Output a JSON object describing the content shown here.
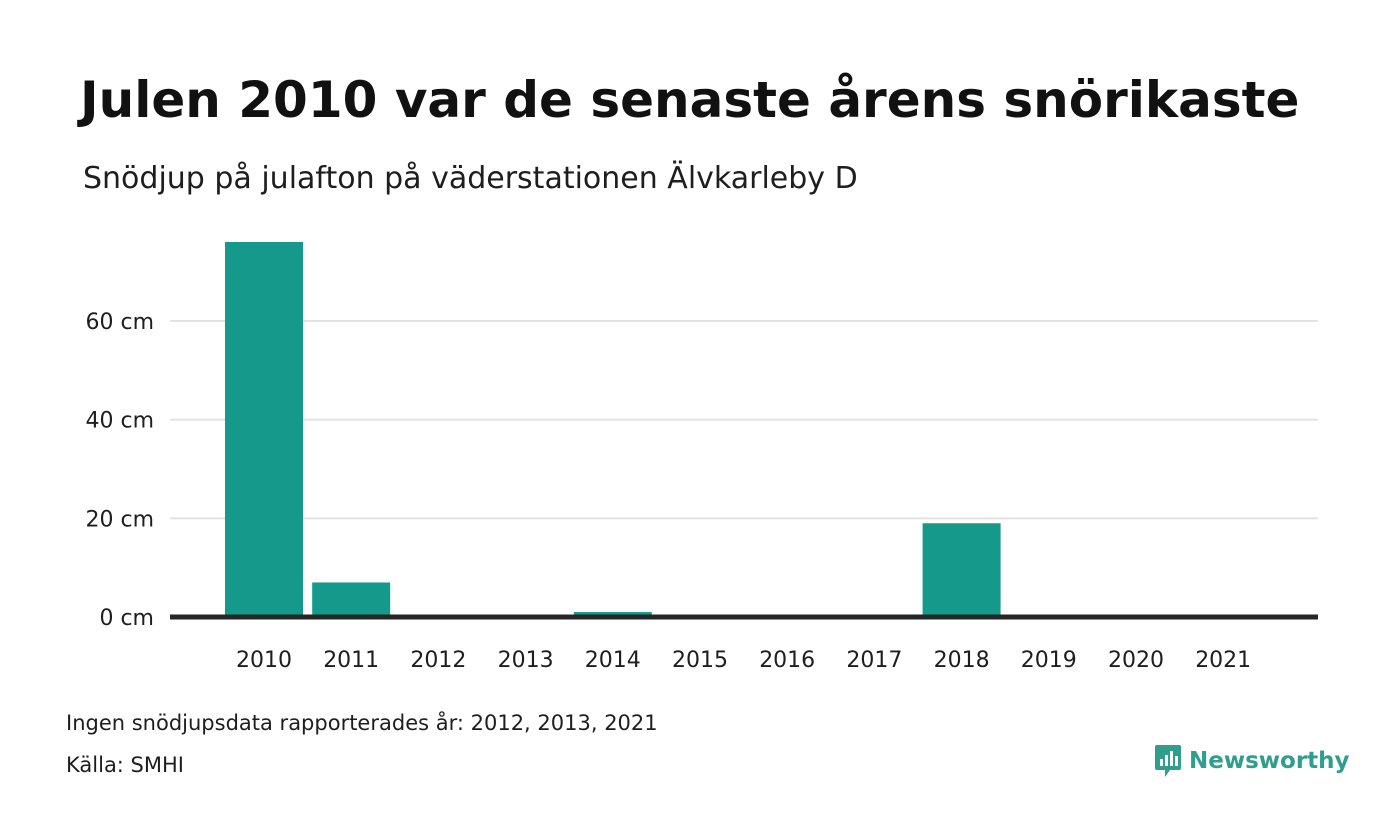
{
  "header": {
    "title": "Julen 2010 var de senaste årens snörikaste",
    "subtitle": "Snödjup på julafton på väderstationen Älvkarleby D"
  },
  "footer": {
    "note": "Ingen snödjupsdata rapporterades år: 2012, 2013, 2021",
    "source": "Källa: SMHI",
    "brand": "Newsworthy",
    "brand_icon": "newsworthy-logo-icon"
  },
  "colors": {
    "bar": "#14998a",
    "grid": "#e2e2e2",
    "baseline": "#262626",
    "brand": "#2f9e8d"
  },
  "chart_data": {
    "type": "bar",
    "title": "Julen 2010 var de senaste årens snörikaste",
    "subtitle": "Snödjup på julafton på väderstationen Älvkarleby D",
    "xlabel": "",
    "ylabel": "",
    "categories": [
      "2010",
      "2011",
      "2012",
      "2013",
      "2014",
      "2015",
      "2016",
      "2017",
      "2018",
      "2019",
      "2020",
      "2021"
    ],
    "values": [
      76,
      7,
      null,
      null,
      1,
      0,
      0,
      0,
      19,
      0,
      0,
      null
    ],
    "ylim": [
      0,
      76
    ],
    "y_ticks": [
      0,
      20,
      40,
      60
    ],
    "y_tick_labels": [
      "0 cm",
      "20 cm",
      "40 cm",
      "60 cm"
    ],
    "grid": true,
    "legend": "none"
  }
}
